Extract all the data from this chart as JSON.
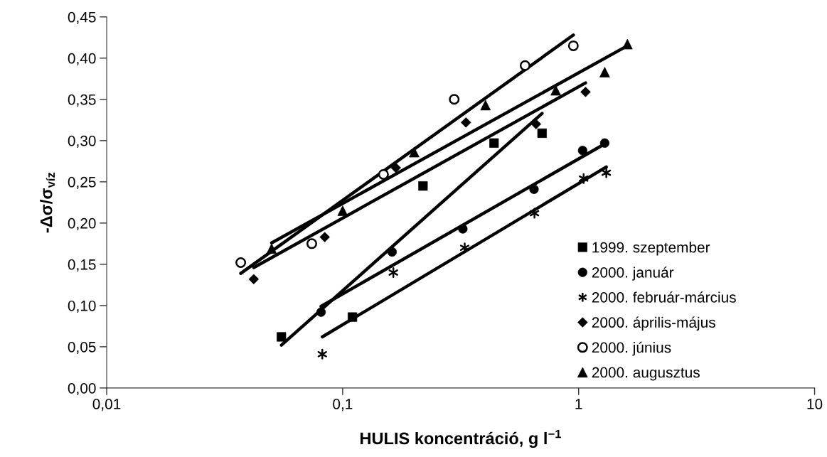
{
  "chart_data": {
    "type": "scatter",
    "xlabel": "HULIS koncentráció, g l$^{−1}$",
    "ylabel": "-Δσ/σ$_{víz}$",
    "log": "x",
    "xlim": [
      0.01,
      10
    ],
    "xticks": [
      {
        "value": 0.01,
        "label": "0,01"
      },
      {
        "value": 0.1,
        "label": "0,1"
      },
      {
        "value": 1,
        "label": "1"
      },
      {
        "value": 10,
        "label": "10"
      }
    ],
    "ylim": [
      0,
      0.45
    ],
    "yticks": [
      {
        "value": 0,
        "label": "0,00"
      },
      {
        "value": 0.05,
        "label": "0,05"
      },
      {
        "value": 0.1,
        "label": "0,10"
      },
      {
        "value": 0.15,
        "label": "0,15"
      },
      {
        "value": 0.2,
        "label": "0,20"
      },
      {
        "value": 0.25,
        "label": "0,25"
      },
      {
        "value": 0.3,
        "label": "0,30"
      },
      {
        "value": 0.35,
        "label": "0,35"
      },
      {
        "value": 0.4,
        "label": "0,40"
      },
      {
        "value": 0.45,
        "label": "0,45"
      }
    ],
    "grid": false,
    "legend": "bottom right",
    "series": [
      {
        "type": "line",
        "color": "#000000",
        "x": [
          0.055,
          0.7
        ],
        "values": [
          0.052,
          0.333
        ]
      },
      {
        "type": "line",
        "color": "#000000",
        "x": [
          0.081,
          1.29
        ],
        "values": [
          0.099,
          0.296
        ]
      },
      {
        "type": "line",
        "color": "#000000",
        "x": [
          0.082,
          1.31
        ],
        "values": [
          0.062,
          0.268
        ]
      },
      {
        "type": "line",
        "color": "#000000",
        "x": [
          0.042,
          1.07
        ],
        "values": [
          0.146,
          0.37
        ]
      },
      {
        "type": "line",
        "color": "#000000",
        "x": [
          0.037,
          0.95
        ],
        "values": [
          0.139,
          0.428
        ]
      },
      {
        "type": "line",
        "color": "#000000",
        "x": [
          0.05,
          1.61
        ],
        "values": [
          0.176,
          0.415
        ]
      },
      {
        "name": "1999. szeptember",
        "color": "#000000",
        "marker": "square",
        "x": [
          0.055,
          0.11,
          0.219,
          0.438,
          0.7
        ],
        "values": [
          0.062,
          0.086,
          0.245,
          0.297,
          0.309
        ]
      },
      {
        "name": "2000. január",
        "color": "#000000",
        "marker": "circle",
        "x": [
          0.081,
          0.162,
          0.323,
          0.647,
          1.04,
          1.29
        ],
        "values": [
          0.092,
          0.165,
          0.193,
          0.241,
          0.288,
          0.297
        ]
      },
      {
        "name": "2000. február-március",
        "color": "#000000",
        "marker": "cross",
        "x": [
          0.082,
          0.164,
          0.329,
          0.65,
          1.05,
          1.31
        ],
        "values": [
          0.041,
          0.14,
          0.17,
          0.212,
          0.254,
          0.261
        ]
      },
      {
        "name": "2000. április-május",
        "color": "#000000",
        "marker": "diamond",
        "x": [
          0.042,
          0.084,
          0.168,
          0.333,
          0.66,
          1.07
        ],
        "values": [
          0.132,
          0.183,
          0.267,
          0.322,
          0.32,
          0.359
        ]
      },
      {
        "name": "2000. június",
        "color": "#ffffff",
        "marker": "circle",
        "x": [
          0.037,
          0.074,
          0.149,
          0.297,
          0.593,
          0.95
        ],
        "values": [
          0.152,
          0.175,
          0.259,
          0.35,
          0.391,
          0.415
        ]
      },
      {
        "name": "2000. augusztus",
        "color": "#000000",
        "marker": "triangle",
        "x": [
          0.05,
          0.1,
          0.201,
          0.403,
          0.8,
          1.29,
          1.61
        ],
        "values": [
          0.169,
          0.215,
          0.286,
          0.343,
          0.361,
          0.383,
          0.417
        ]
      }
    ]
  }
}
